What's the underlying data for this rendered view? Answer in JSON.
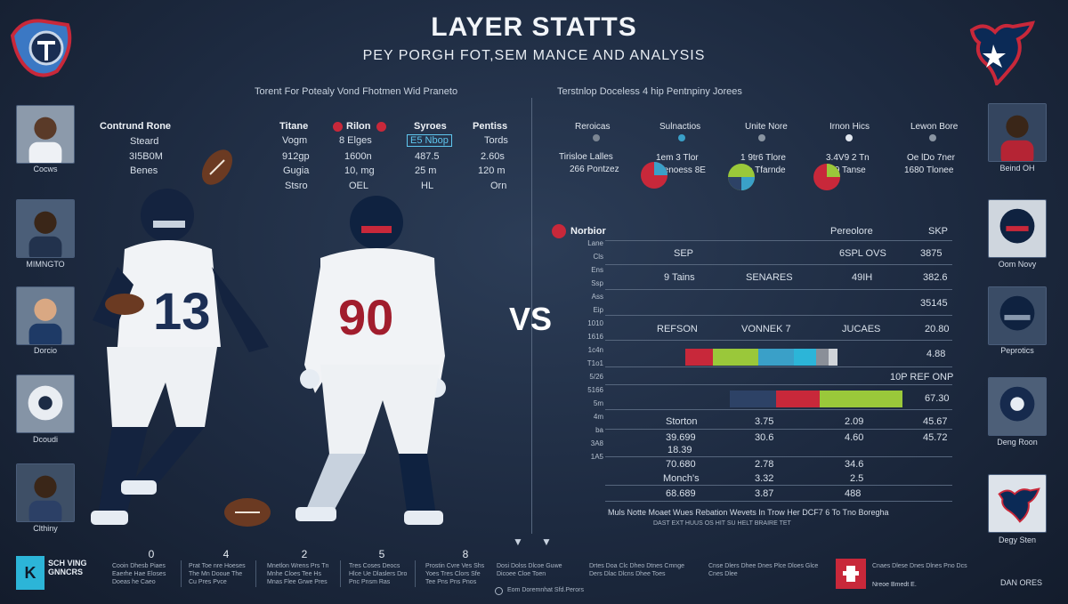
{
  "header": {
    "title": "LAYER STATTS",
    "subtitle": "PEY PORGH FOT,SEM MANCE AND ANALYSIS"
  },
  "left_note": "Torent For Potealy Vond Fhotmen Wid Praneto",
  "right_note": "Terstnlop Doceless 4 hip Pentnpiny Jorees",
  "vs_label": "VS",
  "left_cards": [
    {
      "label": "Cocws"
    },
    {
      "label": "MIMNGTO"
    },
    {
      "label": "Dorcio"
    },
    {
      "label": "Dcoudi"
    },
    {
      "label": "Clthiny"
    }
  ],
  "right_cards": [
    {
      "label": "Beind OH"
    },
    {
      "label": "Oom Novy"
    },
    {
      "label": "Peprotics"
    },
    {
      "label": "Deng Roon"
    },
    {
      "label": "Degy Sten"
    }
  ],
  "left_stats": {
    "row_labels": [
      "Contrund Rone",
      "Steard",
      "3I5B0M",
      "Benes"
    ],
    "columns": [
      {
        "header": "Titane",
        "values": [
          "Vogm",
          "912gp",
          "Gugia",
          "Stsro"
        ]
      },
      {
        "header": "Rilon",
        "values": [
          "8 Elges",
          "1600n",
          "10, mg",
          "OEL"
        ]
      },
      {
        "header": "Syroes",
        "values": [
          "E5 Nbop",
          "487.5",
          "25 m",
          "HL"
        ]
      },
      {
        "header": "Pentiss",
        "values": [
          "Tords",
          "2.60s",
          "120 m",
          "Orn"
        ]
      }
    ]
  },
  "right_legend": [
    {
      "header": "Reroicas",
      "sub": "Tirisloe Lalles",
      "value": "266 Pontzez",
      "color": "#7b8592"
    },
    {
      "header": "Sulnactios",
      "sub": "1em 3 Tlor",
      "value": "Benoess 8E",
      "color": "#3aa0c8"
    },
    {
      "header": "Unite Nore",
      "sub": "1 9tr6 Tlore",
      "value": "To Tfarnde",
      "color": "#8a95a2"
    },
    {
      "header": "Irnon Hics",
      "sub": "3.4V9 2 Tn",
      "value": "6.39 Tanse",
      "color": "#e1e7ef"
    },
    {
      "header": "Lewon Bore",
      "sub": "Oe lDo 7ner",
      "value": "1680 Tlonee",
      "color": "#8a95a2"
    }
  ],
  "pie_colors": [
    "#c8283a",
    "#3aa0c8",
    "#9ac83a",
    "#2d4266"
  ],
  "table": {
    "title": "Norbior",
    "col_b": "Pereolore",
    "col_c": "SKP",
    "axis_labels": [
      "Lane",
      "Cls",
      "Ens",
      "Ssp",
      "Ass",
      "Eip",
      "1010",
      "1616",
      "1c4n",
      "T1o1",
      "5/26",
      "5166",
      "5m",
      "4m",
      "ba",
      "3A8",
      "1A5"
    ],
    "rows": [
      {
        "a": "SEP",
        "b": "6SPL OVS",
        "c": "3875"
      },
      {
        "a": "9 Tains",
        "b": "SENARES",
        "b2": "49IH",
        "c": "382.6"
      },
      {
        "a": "",
        "b": "",
        "c": "35145"
      },
      {
        "a": "REFSON",
        "b": "VONNEK 7",
        "b2": "JUCAES",
        "c": "20.80"
      },
      {
        "a": "",
        "b": "",
        "c": "4.88"
      },
      {
        "a": "",
        "b": "",
        "c": "10P REF ONP"
      },
      {
        "a": "",
        "b": "",
        "c": "67.30"
      }
    ],
    "bar1": [
      {
        "color": "#c8283a",
        "value": 0.15
      },
      {
        "color": "#9ac83a",
        "value": 0.25
      },
      {
        "color": "#3aa0c8",
        "value": 0.2
      },
      {
        "color": "#2cb5d8",
        "value": 0.12
      },
      {
        "color": "#8a8f98",
        "value": 0.07
      },
      {
        "color": "#d0d4d9",
        "value": 0.05
      }
    ],
    "bar2": [
      {
        "color": "#2d4266",
        "value": 0.27
      },
      {
        "color": "#c8283a",
        "value": 0.25
      },
      {
        "color": "#9ac83a",
        "value": 0.48
      }
    ],
    "lower_rows": [
      {
        "a": "Storton",
        "b": "3.75",
        "c": "2.09",
        "d": "45.67"
      },
      {
        "a": "39.699",
        "b": "30.6",
        "c": "4.60",
        "d": "45.72"
      },
      {
        "a": "18.39",
        "b": "",
        "c": "",
        "d": ""
      },
      {
        "a": "70.680",
        "b": "2.78",
        "c": "34.6",
        "d": ""
      },
      {
        "a": "Monch's",
        "b": "3.32",
        "c": "2.5",
        "d": ""
      },
      {
        "a": "68.689",
        "b": "3.87",
        "c": "488",
        "d": ""
      }
    ],
    "footer_line1": "Muls Notte Moaet Wues Rebation Wevets In Trow Her DCF7 6 To Tno Boregha",
    "footer_line2": "DAST  EXT  HUUS  OS  HIT  SU HELT  BRAIRE  TET"
  },
  "bottom": {
    "brand": "SCH VING GNNCRS",
    "numbers": [
      "0",
      "4",
      "2",
      "5",
      "8"
    ],
    "blurbs": [
      "Cooin Dhesb Piaes Eaerhe Hae Eloses Doeas he Caeo",
      "Prat Toe nre Hoeses The Mn Dooue The Cu Pres Pvce",
      "Mnetlon Wrens Prs Tn Mnhe Cloes Tee Hs Mnas Flee Grwe Pres",
      "Tres Coses Deocs Hlce Ue Dlaslers Dro Pnc Pnsm Ras",
      "Prostin Cvre Ves Shs Yoes Tres Clors Sfe Tee Pns Pns Pnos"
    ],
    "mid_text": "Dosi Dolss Dlcoe Guwe Dicoee Cloe Toen",
    "center_caption": "Eom Doremnhat Sfd.Perors",
    "right_blurbs": [
      "Drtes Doa Clc Dheo Dtnes Cmnge Ders Dlac Dlcns Dhee Toes",
      "Cnse Dlers Dhee Dnes Plce Dloes Glce Cnes Dlee",
      "Cnaes Dlese Dnes Dlnes Pno Dcs"
    ],
    "right_brand_caption": "Nreoe Bmedt E.",
    "right_label": "DAN ORES"
  },
  "arrows": [
    "▼",
    "▼"
  ]
}
